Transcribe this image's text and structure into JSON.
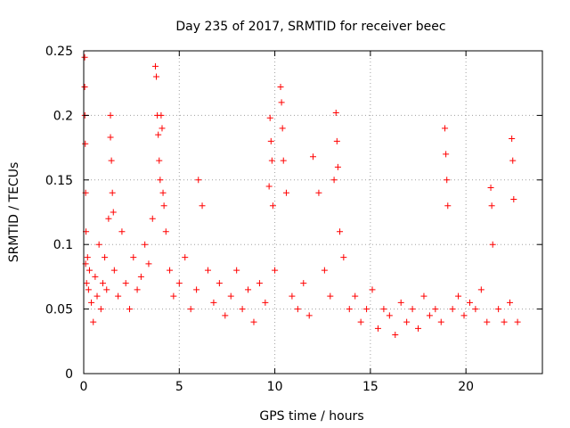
{
  "chart_data": {
    "type": "scatter",
    "title": "Day 235 of 2017, SRMTID for receiver beec",
    "xlabel": "GPS time / hours",
    "ylabel": "SRMTID / TECUs",
    "xlim": [
      0,
      24
    ],
    "ylim": [
      0,
      0.25
    ],
    "x_ticks": [
      0,
      5,
      10,
      15,
      20
    ],
    "x_tick_labels": [
      "0",
      "5",
      "10",
      "15",
      "20"
    ],
    "y_ticks": [
      0,
      0.05,
      0.1,
      0.15,
      0.2,
      0.25
    ],
    "y_tick_labels": [
      "0",
      "0.05",
      "0.1",
      "0.15",
      "0.2",
      "0.25"
    ],
    "grid": true,
    "marker": "+",
    "color": "#ff0000",
    "series": [
      {
        "name": "SRMTID",
        "x": [
          0.05,
          0.05,
          0.06,
          0.08,
          0.1,
          0.1,
          0.12,
          0.15,
          0.2,
          0.25,
          0.3,
          0.4,
          0.5,
          0.6,
          0.7,
          0.8,
          0.9,
          1.0,
          1.1,
          1.2,
          1.3,
          1.4,
          1.4,
          1.45,
          1.5,
          1.55,
          1.6,
          1.8,
          2.0,
          2.2,
          2.4,
          2.6,
          2.8,
          3.0,
          3.2,
          3.4,
          3.6,
          3.75,
          3.8,
          3.85,
          3.9,
          3.95,
          4.0,
          4.05,
          4.1,
          4.15,
          4.2,
          4.3,
          4.5,
          4.7,
          5.0,
          5.3,
          5.6,
          5.9,
          6.0,
          6.2,
          6.5,
          6.8,
          7.1,
          7.4,
          7.7,
          8.0,
          8.3,
          8.6,
          8.9,
          9.2,
          9.5,
          9.7,
          9.75,
          9.8,
          9.85,
          9.9,
          10.0,
          10.3,
          10.35,
          10.4,
          10.45,
          10.6,
          10.9,
          11.2,
          11.5,
          11.8,
          12.0,
          12.3,
          12.6,
          12.9,
          13.1,
          13.2,
          13.25,
          13.3,
          13.4,
          13.6,
          13.9,
          14.2,
          14.5,
          14.8,
          15.1,
          15.4,
          15.7,
          16.0,
          16.3,
          16.6,
          16.9,
          17.2,
          17.5,
          17.8,
          18.1,
          18.4,
          18.7,
          18.9,
          18.95,
          19.0,
          19.05,
          19.3,
          19.6,
          19.9,
          20.2,
          20.5,
          20.8,
          21.1,
          21.3,
          21.35,
          21.4,
          21.7,
          22.0,
          22.3,
          22.4,
          22.45,
          22.5,
          22.7
        ],
        "y": [
          0.245,
          0.222,
          0.2,
          0.178,
          0.14,
          0.085,
          0.11,
          0.07,
          0.09,
          0.065,
          0.08,
          0.055,
          0.04,
          0.075,
          0.06,
          0.1,
          0.05,
          0.07,
          0.09,
          0.065,
          0.12,
          0.2,
          0.183,
          0.165,
          0.14,
          0.125,
          0.08,
          0.06,
          0.11,
          0.07,
          0.05,
          0.09,
          0.065,
          0.075,
          0.1,
          0.085,
          0.12,
          0.238,
          0.23,
          0.2,
          0.185,
          0.165,
          0.15,
          0.2,
          0.19,
          0.14,
          0.13,
          0.11,
          0.08,
          0.06,
          0.07,
          0.09,
          0.05,
          0.065,
          0.15,
          0.13,
          0.08,
          0.055,
          0.07,
          0.045,
          0.06,
          0.08,
          0.05,
          0.065,
          0.04,
          0.07,
          0.055,
          0.145,
          0.198,
          0.18,
          0.165,
          0.13,
          0.08,
          0.222,
          0.21,
          0.19,
          0.165,
          0.14,
          0.06,
          0.05,
          0.07,
          0.045,
          0.168,
          0.14,
          0.08,
          0.06,
          0.15,
          0.202,
          0.18,
          0.16,
          0.11,
          0.09,
          0.05,
          0.06,
          0.04,
          0.05,
          0.065,
          0.035,
          0.05,
          0.045,
          0.03,
          0.055,
          0.04,
          0.05,
          0.035,
          0.06,
          0.045,
          0.05,
          0.04,
          0.19,
          0.17,
          0.15,
          0.13,
          0.05,
          0.06,
          0.045,
          0.055,
          0.05,
          0.065,
          0.04,
          0.144,
          0.13,
          0.1,
          0.05,
          0.04,
          0.055,
          0.182,
          0.165,
          0.135,
          0.04
        ]
      }
    ]
  }
}
